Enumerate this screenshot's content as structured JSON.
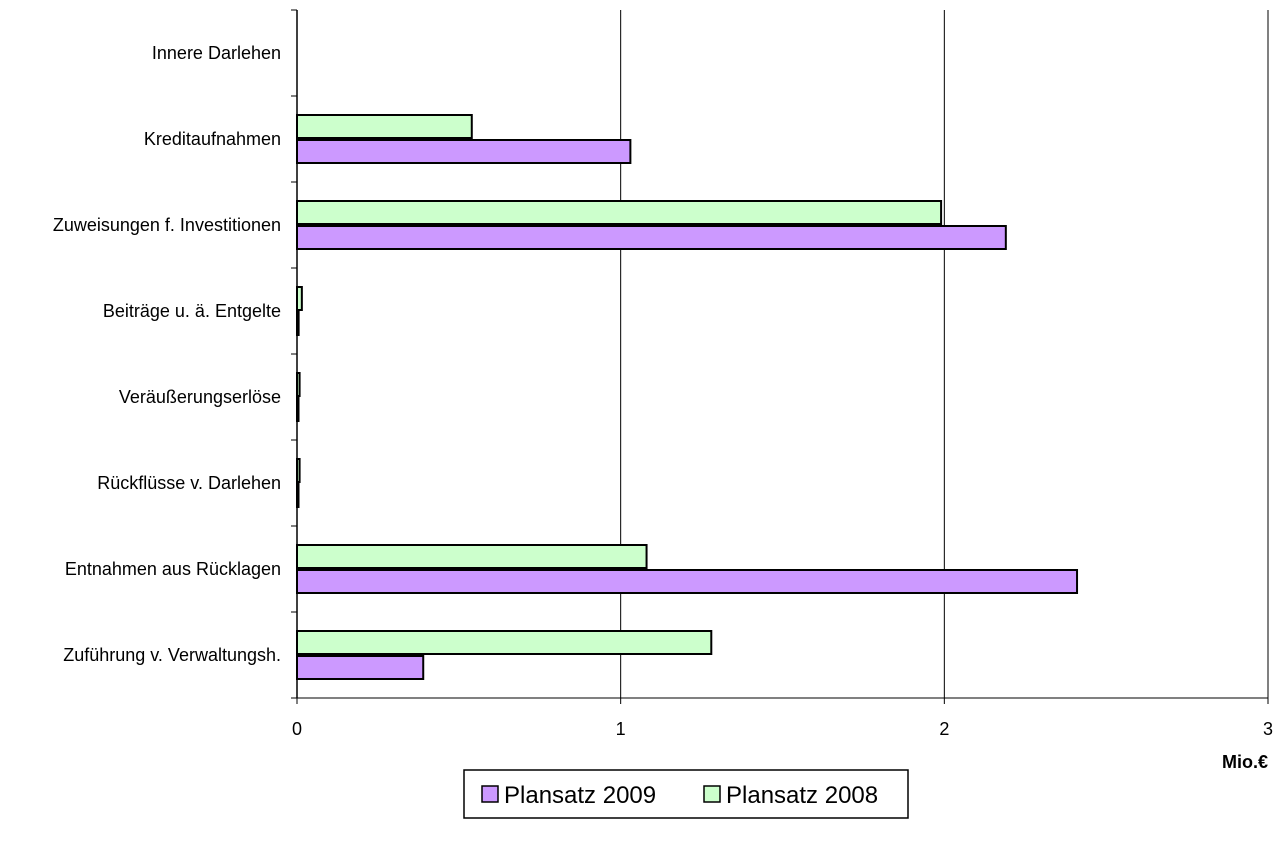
{
  "chart_data": {
    "type": "bar",
    "orientation": "horizontal",
    "categories": [
      "Innere Darlehen",
      "Kreditaufnahmen",
      "Zuweisungen f. Investitionen",
      "Beiträge u. ä. Entgelte",
      "Veräußerungserlöse",
      "Rückflüsse v. Darlehen",
      "Entnahmen aus Rücklagen",
      "Zuführung v. Verwaltungsh."
    ],
    "series": [
      {
        "name": "Plansatz 2009",
        "color": "#cc99ff",
        "values": [
          0,
          1.03,
          2.19,
          0.005,
          0.003,
          0.002,
          2.41,
          0.39
        ]
      },
      {
        "name": "Plansatz 2008",
        "color": "#ccffcc",
        "values": [
          0,
          0.54,
          1.99,
          0.015,
          0.008,
          0.008,
          1.08,
          1.28
        ]
      }
    ],
    "x_ticks": [
      "0",
      "1",
      "2",
      "3"
    ],
    "xlim": [
      0,
      3
    ],
    "xlabel": "Mio.€",
    "grid": "vertical",
    "legend_position": "bottom"
  }
}
